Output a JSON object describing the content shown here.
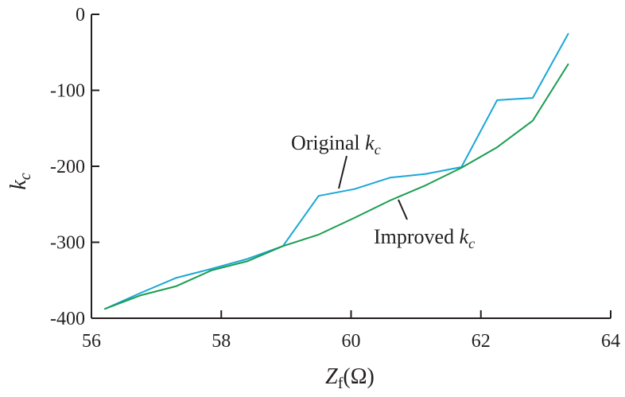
{
  "chart_data": {
    "type": "line",
    "xlabel": {
      "main": "Z",
      "sub": "f",
      "unit": "(Ω)"
    },
    "ylabel": {
      "main": "k",
      "sub": "c"
    },
    "xlim": [
      56,
      64
    ],
    "ylim": [
      -400,
      0
    ],
    "x_ticks": [
      "56",
      "58",
      "60",
      "62",
      "64"
    ],
    "y_ticks": [
      "0",
      "-100",
      "-200",
      "-300",
      "-400"
    ],
    "grid": false,
    "series": [
      {
        "name": "Original k_c",
        "color": "#1ba7d6",
        "x": [
          56.2,
          56.75,
          57.3,
          57.85,
          58.4,
          58.95,
          59.5,
          60.05,
          60.6,
          61.15,
          61.7,
          62.25,
          62.8,
          63.35
        ],
        "y": [
          -388,
          -367,
          -347,
          -335,
          -322,
          -305,
          -239,
          -230,
          -215,
          -210,
          -201,
          -113,
          -110,
          -25
        ]
      },
      {
        "name": "Improved k_c",
        "color": "#1a9d50",
        "x": [
          56.2,
          56.75,
          57.3,
          57.85,
          58.4,
          58.95,
          59.5,
          60.05,
          60.6,
          61.15,
          61.7,
          62.25,
          62.8,
          63.35
        ],
        "y": [
          -388,
          -370,
          -358,
          -337,
          -325,
          -305,
          -290,
          -268,
          -245,
          -225,
          -202,
          -175,
          -140,
          -65
        ]
      }
    ],
    "annotations": [
      {
        "main": "Original ",
        "italic": "k",
        "sub": "c",
        "series": 0,
        "point": [
          59.8,
          -232
        ]
      },
      {
        "main": "Improved ",
        "italic": "k",
        "sub": "c",
        "series": 1,
        "point": [
          60.7,
          -245
        ]
      }
    ]
  }
}
